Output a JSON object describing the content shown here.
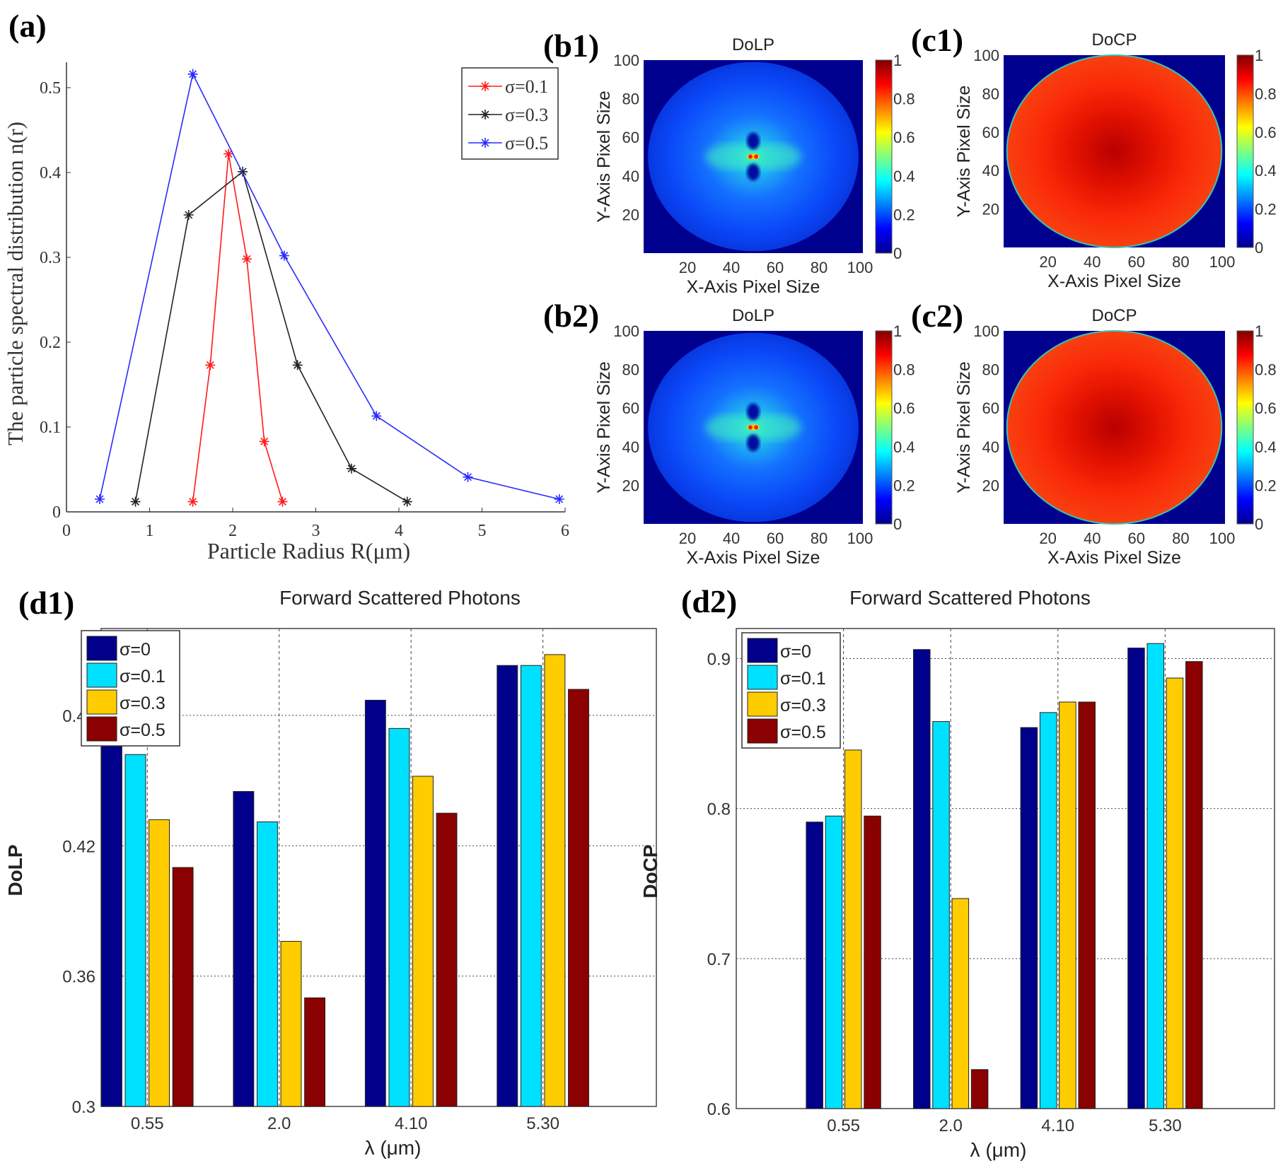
{
  "panel_labels": {
    "a": "(a)",
    "b1": "(b1)",
    "c1": "(c1)",
    "b2": "(b2)",
    "c2": "(c2)",
    "d1": "(d1)",
    "d2": "(d2)"
  },
  "chart_data": [
    {
      "id": "a",
      "type": "line",
      "title": "",
      "xlabel": "Particle Radius R(μm)",
      "ylabel": "The particle spectral distribution n(r)",
      "xlim": [
        0,
        6
      ],
      "ylim": [
        0,
        0.53
      ],
      "xticks": [
        0,
        1,
        2,
        3,
        4,
        5,
        6
      ],
      "xtick_labels": [
        "0",
        "1",
        "2",
        "3",
        "4",
        "5",
        "6"
      ],
      "yticks": [
        0,
        0.1,
        0.2,
        0.3,
        0.4,
        0.5
      ],
      "ytick_labels": [
        "0",
        "0.1",
        "0.2",
        "0.3",
        "0.4",
        "0.5"
      ],
      "grid": false,
      "legend": "top-right",
      "series": [
        {
          "name": "σ=0.1",
          "color": "#ff1a1a",
          "points": [
            [
              1.52,
              0.012
            ],
            [
              1.73,
              0.173
            ],
            [
              1.95,
              0.422
            ],
            [
              2.17,
              0.298
            ],
            [
              2.38,
              0.083
            ],
            [
              2.6,
              0.012
            ]
          ]
        },
        {
          "name": "σ=0.3",
          "color": "#222222",
          "points": [
            [
              0.83,
              0.012
            ],
            [
              1.47,
              0.35
            ],
            [
              2.12,
              0.401
            ],
            [
              2.78,
              0.173
            ],
            [
              3.43,
              0.051
            ],
            [
              4.1,
              0.012
            ]
          ]
        },
        {
          "name": "σ=0.5",
          "color": "#2a2aff",
          "points": [
            [
              0.4,
              0.015
            ],
            [
              1.52,
              0.516
            ],
            [
              2.62,
              0.302
            ],
            [
              3.73,
              0.113
            ],
            [
              4.83,
              0.041
            ],
            [
              5.93,
              0.015
            ]
          ]
        }
      ]
    },
    {
      "id": "b1",
      "type": "heatmap",
      "variant": "dolp",
      "title": "DoLP",
      "xlabel": "X-Axis Pixel Size",
      "ylabel": "Y-Axis Pixel Size",
      "xlim": [
        0,
        100
      ],
      "ylim": [
        0,
        100
      ],
      "xticks": [
        20,
        40,
        60,
        80,
        100
      ],
      "xtick_labels": [
        "20",
        "40",
        "60",
        "80",
        "100"
      ],
      "yticks": [
        20,
        40,
        60,
        80,
        100
      ],
      "ytick_labels": [
        "20",
        "40",
        "60",
        "80",
        "100"
      ],
      "colorbar": {
        "range": [
          0,
          1
        ],
        "ticks": [
          0,
          0.2,
          0.4,
          0.6,
          0.8,
          1
        ],
        "tick_labels": [
          "0",
          "0.2",
          "0.4",
          "0.6",
          "0.8",
          "1"
        ],
        "colormap": "jet"
      }
    },
    {
      "id": "c1",
      "type": "heatmap",
      "variant": "docp",
      "title": "DoCP",
      "xlabel": "X-Axis Pixel Size",
      "ylabel": "Y-Axis Pixel Size",
      "xlim": [
        0,
        100
      ],
      "ylim": [
        0,
        100
      ],
      "xticks": [
        20,
        40,
        60,
        80,
        100
      ],
      "xtick_labels": [
        "20",
        "40",
        "60",
        "80",
        "100"
      ],
      "yticks": [
        20,
        40,
        60,
        80,
        100
      ],
      "ytick_labels": [
        "20",
        "40",
        "60",
        "80",
        "100"
      ],
      "colorbar": {
        "range": [
          0,
          1
        ],
        "ticks": [
          0,
          0.2,
          0.4,
          0.6,
          0.8,
          1
        ],
        "tick_labels": [
          "0",
          "0.2",
          "0.4",
          "0.6",
          "0.8",
          "1"
        ],
        "colormap": "jet"
      }
    },
    {
      "id": "b2",
      "type": "heatmap",
      "variant": "dolp",
      "title": "DoLP",
      "xlabel": "X-Axis Pixel Size",
      "ylabel": "Y-Axis Pixel Size",
      "xlim": [
        0,
        100
      ],
      "ylim": [
        0,
        100
      ],
      "xticks": [
        20,
        40,
        60,
        80,
        100
      ],
      "xtick_labels": [
        "20",
        "40",
        "60",
        "80",
        "100"
      ],
      "yticks": [
        20,
        40,
        60,
        80,
        100
      ],
      "ytick_labels": [
        "20",
        "40",
        "60",
        "80",
        "100"
      ],
      "colorbar": {
        "range": [
          0,
          1
        ],
        "ticks": [
          0,
          0.2,
          0.4,
          0.6,
          0.8,
          1
        ],
        "tick_labels": [
          "0",
          "0.2",
          "0.4",
          "0.6",
          "0.8",
          "1"
        ],
        "colormap": "jet"
      }
    },
    {
      "id": "c2",
      "type": "heatmap",
      "variant": "docp",
      "title": "DoCP",
      "xlabel": "X-Axis Pixel Size",
      "ylabel": "Y-Axis Pixel Size",
      "xlim": [
        0,
        100
      ],
      "ylim": [
        0,
        100
      ],
      "xticks": [
        20,
        40,
        60,
        80,
        100
      ],
      "xtick_labels": [
        "20",
        "40",
        "60",
        "80",
        "100"
      ],
      "yticks": [
        20,
        40,
        60,
        80,
        100
      ],
      "ytick_labels": [
        "20",
        "40",
        "60",
        "80",
        "100"
      ],
      "colorbar": {
        "range": [
          0,
          1
        ],
        "ticks": [
          0,
          0.2,
          0.4,
          0.6,
          0.8,
          1
        ],
        "tick_labels": [
          "0",
          "0.2",
          "0.4",
          "0.6",
          "0.8",
          "1"
        ],
        "colormap": "jet"
      }
    },
    {
      "id": "d1",
      "type": "bar",
      "title": "Forward Scattered Photons",
      "xlabel": "λ (μm)",
      "ylabel": "DoLP",
      "categories": [
        "0.55",
        "2.0",
        "4.10",
        "5.30"
      ],
      "xlim": [
        0.65,
        4.86
      ],
      "ylim": [
        0.3,
        0.52
      ],
      "yticks": [
        0.3,
        0.36,
        0.42,
        0.48
      ],
      "ytick_labels": [
        "0.3",
        "0.36",
        "0.42",
        "0.48"
      ],
      "grid": true,
      "legend": "top-left",
      "series": [
        {
          "name": "σ=0",
          "color": "#00008b",
          "values": [
            0.47,
            0.445,
            0.487,
            0.503
          ]
        },
        {
          "name": "σ=0.1",
          "color": "#00e1ff",
          "values": [
            0.462,
            0.431,
            0.474,
            0.503
          ]
        },
        {
          "name": "σ=0.3",
          "color": "#ffcc00",
          "values": [
            0.432,
            0.376,
            0.452,
            0.508
          ]
        },
        {
          "name": "σ=0.5",
          "color": "#8b0000",
          "values": [
            0.41,
            0.35,
            0.435,
            0.492
          ]
        }
      ]
    },
    {
      "id": "d2",
      "type": "bar",
      "title": "Forward Scattered Photons",
      "xlabel": "λ (μm)",
      "ylabel": "DoCP",
      "categories": [
        "0.55",
        "2.0",
        "4.10",
        "5.30"
      ],
      "xlim": [
        0,
        5.02
      ],
      "ylim": [
        0.6,
        0.92
      ],
      "yticks": [
        0.6,
        0.7,
        0.8,
        0.9
      ],
      "ytick_labels": [
        "0.6",
        "0.7",
        "0.8",
        "0.9"
      ],
      "grid": true,
      "legend": "top-left",
      "series": [
        {
          "name": "σ=0",
          "color": "#00008b",
          "values": [
            0.791,
            0.906,
            0.854,
            0.907
          ]
        },
        {
          "name": "σ=0.1",
          "color": "#00e1ff",
          "values": [
            0.795,
            0.858,
            0.864,
            0.91
          ]
        },
        {
          "name": "σ=0.3",
          "color": "#ffcc00",
          "values": [
            0.839,
            0.74,
            0.871,
            0.887
          ]
        },
        {
          "name": "σ=0.5",
          "color": "#8b0000",
          "values": [
            0.795,
            0.626,
            0.871,
            0.898
          ]
        }
      ]
    }
  ]
}
